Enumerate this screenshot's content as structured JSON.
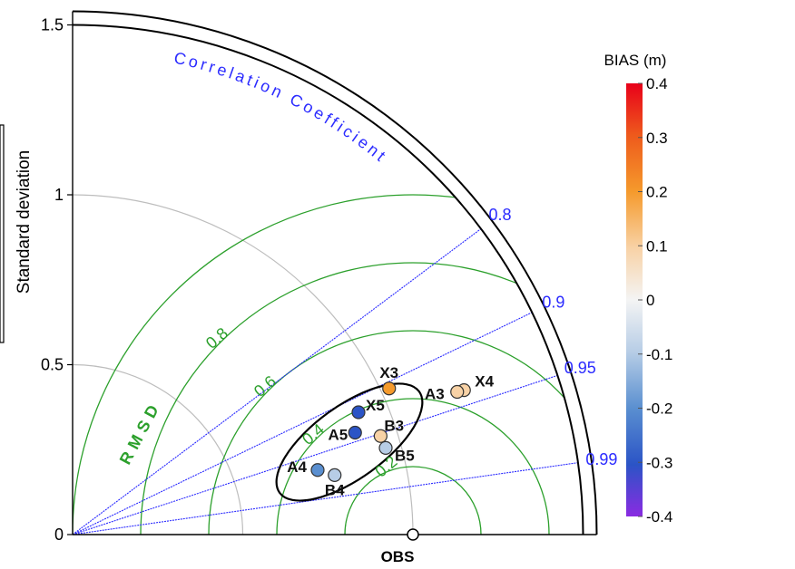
{
  "chart_data": {
    "type": "scatter",
    "subtype": "taylor-diagram",
    "title": "",
    "ylabel": "Standard deviation",
    "xlabel": "",
    "std_ticks": [
      "0",
      "0.5",
      "1",
      "1.5"
    ],
    "std_range": [
      0,
      1.5
    ],
    "obs_label": "OBS",
    "obs_std": 1.0,
    "correlation_label": "Correlation Coefficient",
    "correlation_ticks": [
      {
        "value": 0.8,
        "label": "0.8"
      },
      {
        "value": 0.9,
        "label": "0.9"
      },
      {
        "value": 0.95,
        "label": "0.95"
      },
      {
        "value": 0.99,
        "label": "0.99"
      }
    ],
    "rmsd_label": "RMSD",
    "rmsd_contours": [
      {
        "value": 0.2,
        "label": "0.2"
      },
      {
        "value": 0.4,
        "label": "0.4"
      },
      {
        "value": 0.6,
        "label": "0.6"
      },
      {
        "value": 0.8,
        "label": "0.8"
      }
    ],
    "points": [
      {
        "name": "X3",
        "x": 0.93,
        "y": 0.43,
        "bias": 0.2
      },
      {
        "name": "X4",
        "x": 1.15,
        "y": 0.425,
        "bias": 0.1
      },
      {
        "name": "A3",
        "x": 1.13,
        "y": 0.42,
        "bias": 0.15
      },
      {
        "name": "X5",
        "x": 0.84,
        "y": 0.36,
        "bias": -0.25
      },
      {
        "name": "A5",
        "x": 0.83,
        "y": 0.3,
        "bias": -0.3
      },
      {
        "name": "B3",
        "x": 0.905,
        "y": 0.29,
        "bias": 0.1
      },
      {
        "name": "B5",
        "x": 0.92,
        "y": 0.255,
        "bias": -0.08
      },
      {
        "name": "A4",
        "x": 0.72,
        "y": 0.19,
        "bias": -0.2
      },
      {
        "name": "B4",
        "x": 0.77,
        "y": 0.175,
        "bias": -0.1
      }
    ],
    "colorbar": {
      "title": "BIAS (m)",
      "min": -0.4,
      "max": 0.4,
      "ticks": [
        "0.4",
        "0.3",
        "0.2",
        "0.1",
        "0",
        "-0.1",
        "-0.2",
        "-0.3",
        "-0.4"
      ]
    },
    "colors": {
      "axis": "#000000",
      "grid_std": "#bdbdbd",
      "correlation": "#2b2bff",
      "rmsd": "#2ca02c"
    }
  }
}
